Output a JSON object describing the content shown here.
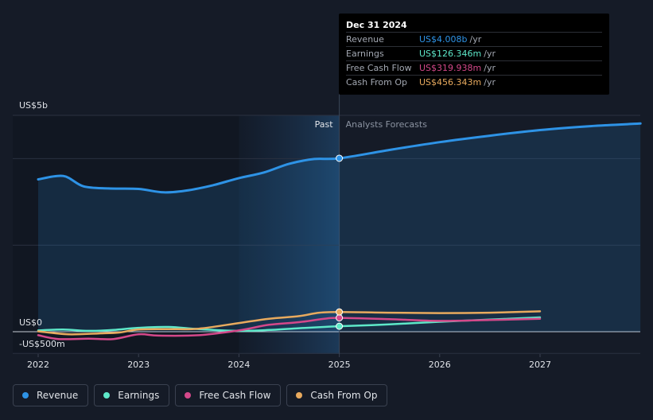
{
  "chart_data": {
    "type": "line",
    "y_axis_labels": [
      "US$5b",
      "US$0",
      "-US$500m"
    ],
    "ylim": [
      -500,
      5000
    ],
    "x_tick_labels": [
      "2022",
      "2023",
      "2024",
      "2025",
      "2026",
      "2027"
    ],
    "section_labels": {
      "past": "Past",
      "forecast": "Analysts Forecasts"
    },
    "divider_x": 2025.0,
    "series": [
      {
        "name": "Revenue",
        "color": "#2e93e6",
        "points": [
          [
            2022.0,
            3520
          ],
          [
            2022.25,
            3600
          ],
          [
            2022.45,
            3360
          ],
          [
            2022.7,
            3310
          ],
          [
            2023.0,
            3300
          ],
          [
            2023.25,
            3220
          ],
          [
            2023.5,
            3270
          ],
          [
            2023.75,
            3390
          ],
          [
            2024.0,
            3550
          ],
          [
            2024.25,
            3680
          ],
          [
            2024.5,
            3880
          ],
          [
            2024.75,
            3990
          ],
          [
            2025.0,
            4008
          ],
          [
            2025.5,
            4200
          ],
          [
            2026.0,
            4380
          ],
          [
            2026.5,
            4530
          ],
          [
            2027.0,
            4660
          ],
          [
            2027.5,
            4750
          ],
          [
            2028.0,
            4810
          ]
        ]
      },
      {
        "name": "Earnings",
        "color": "#5ee8c9",
        "points": [
          [
            2022.0,
            30
          ],
          [
            2022.25,
            50
          ],
          [
            2022.5,
            20
          ],
          [
            2022.75,
            40
          ],
          [
            2023.0,
            90
          ],
          [
            2023.3,
            110
          ],
          [
            2023.6,
            60
          ],
          [
            2024.0,
            20
          ],
          [
            2024.3,
            40
          ],
          [
            2024.6,
            80
          ],
          [
            2024.85,
            110
          ],
          [
            2025.0,
            126.346
          ],
          [
            2025.5,
            170
          ],
          [
            2026.0,
            230
          ],
          [
            2026.5,
            280
          ],
          [
            2027.0,
            330
          ]
        ]
      },
      {
        "name": "Free Cash Flow",
        "color": "#d4488a",
        "points": [
          [
            2022.0,
            -80
          ],
          [
            2022.2,
            -170
          ],
          [
            2022.5,
            -160
          ],
          [
            2022.75,
            -170
          ],
          [
            2023.0,
            -60
          ],
          [
            2023.2,
            -90
          ],
          [
            2023.6,
            -80
          ],
          [
            2024.0,
            30
          ],
          [
            2024.3,
            160
          ],
          [
            2024.6,
            220
          ],
          [
            2024.85,
            300
          ],
          [
            2025.0,
            319.938
          ],
          [
            2025.5,
            290
          ],
          [
            2026.0,
            250
          ],
          [
            2026.5,
            270
          ],
          [
            2027.0,
            300
          ]
        ]
      },
      {
        "name": "Cash From Op",
        "color": "#e8aa5e",
        "points": [
          [
            2022.0,
            10
          ],
          [
            2022.3,
            -60
          ],
          [
            2022.6,
            -40
          ],
          [
            2022.8,
            -20
          ],
          [
            2023.0,
            50
          ],
          [
            2023.3,
            60
          ],
          [
            2023.6,
            70
          ],
          [
            2024.0,
            200
          ],
          [
            2024.3,
            300
          ],
          [
            2024.6,
            360
          ],
          [
            2024.8,
            440
          ],
          [
            2025.0,
            456.343
          ],
          [
            2025.5,
            440
          ],
          [
            2026.0,
            430
          ],
          [
            2026.5,
            440
          ],
          [
            2027.0,
            470
          ]
        ]
      }
    ],
    "tooltip": {
      "date": "Dec 31 2024",
      "rows": [
        {
          "label": "Revenue",
          "value": "US$4.008b",
          "unit": "/yr",
          "color": "#2e93e6"
        },
        {
          "label": "Earnings",
          "value": "US$126.346m",
          "unit": "/yr",
          "color": "#5ee8c9"
        },
        {
          "label": "Free Cash Flow",
          "value": "US$319.938m",
          "unit": "/yr",
          "color": "#d4488a"
        },
        {
          "label": "Cash From Op",
          "value": "US$456.343m",
          "unit": "/yr",
          "color": "#e8aa5e"
        }
      ]
    },
    "legend": [
      {
        "label": "Revenue",
        "color": "#2e93e6"
      },
      {
        "label": "Earnings",
        "color": "#5ee8c9"
      },
      {
        "label": "Free Cash Flow",
        "color": "#d4488a"
      },
      {
        "label": "Cash From Op",
        "color": "#e8aa5e"
      }
    ]
  }
}
